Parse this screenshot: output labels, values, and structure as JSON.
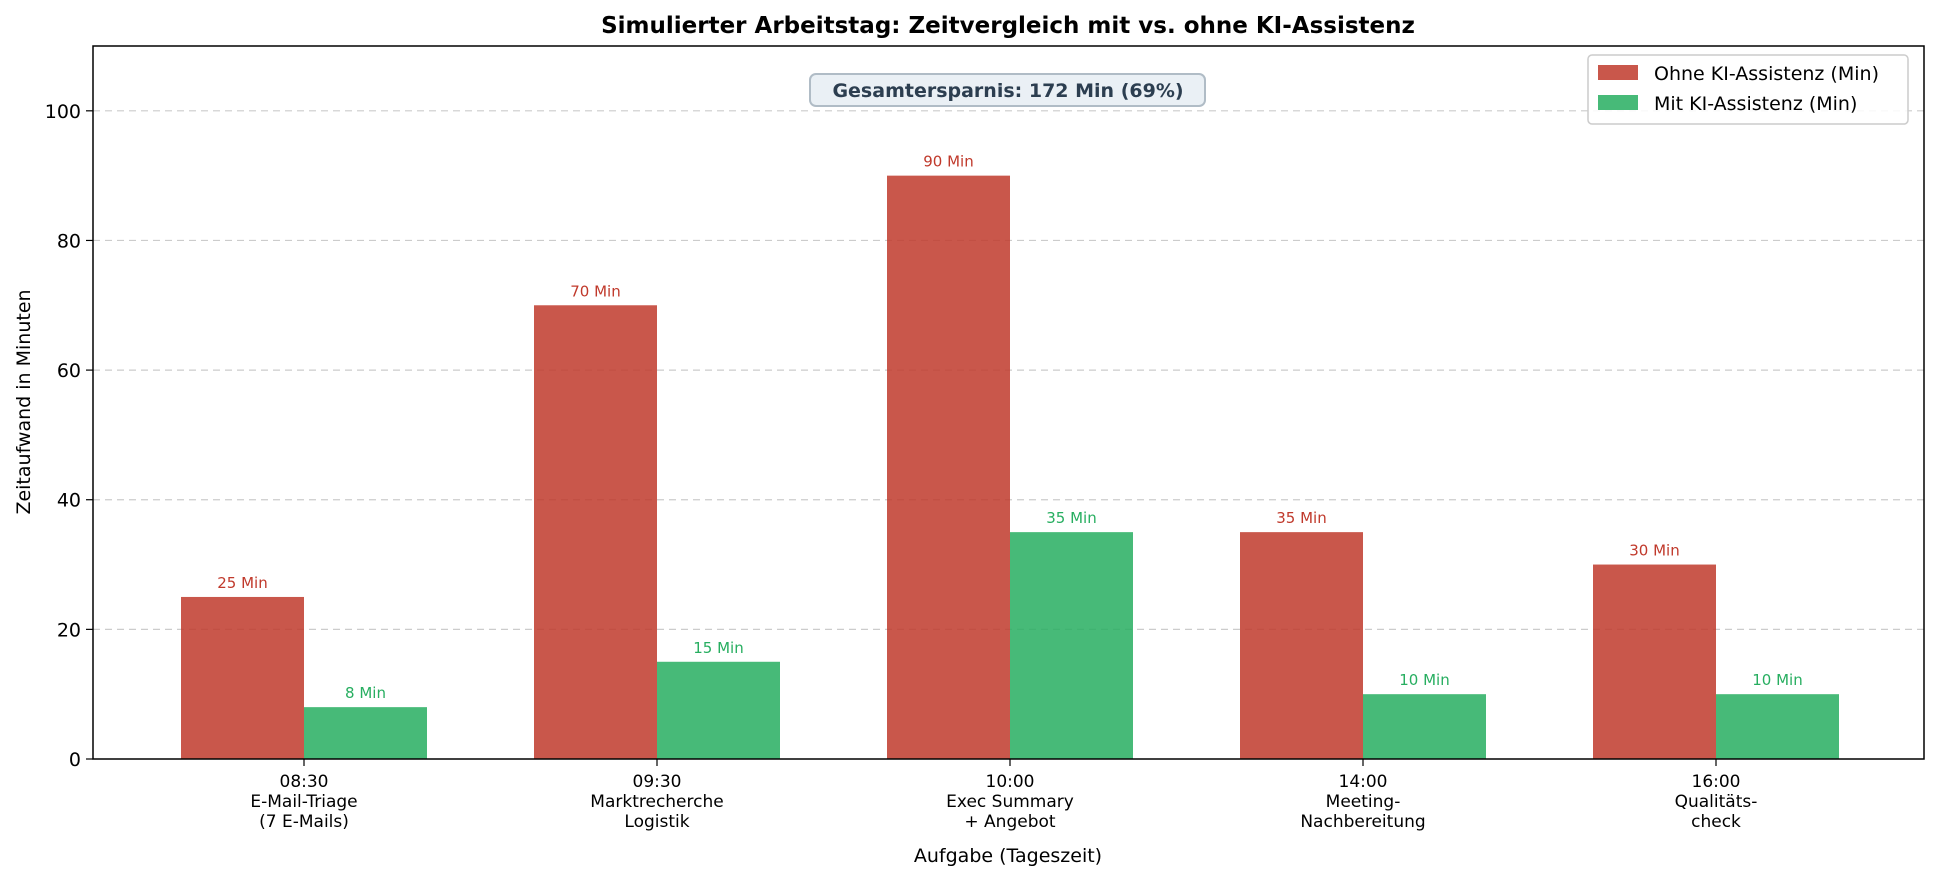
{
  "chart_data": {
    "type": "bar",
    "title": "Simulierter Arbeitstag: Zeitvergleich mit vs. ohne KI-Assistenz",
    "xlabel": "Aufgabe (Tageszeit)",
    "ylabel": "Zeitaufwand in Minuten",
    "categories": [
      [
        "08:30",
        "E-Mail-Triage",
        "(7 E-Mails)"
      ],
      [
        "09:30",
        "Marktrecherche",
        "Logistik"
      ],
      [
        "10:00",
        "Exec Summary",
        "+ Angebot"
      ],
      [
        "14:00",
        "Meeting-",
        "Nachbereitung"
      ],
      [
        "16:00",
        "Qualitäts-",
        "check"
      ]
    ],
    "series": [
      {
        "name": "Ohne KI-Assistenz (Min)",
        "values": [
          25,
          70,
          90,
          35,
          30
        ],
        "labels": [
          "25 Min",
          "70 Min",
          "90 Min",
          "35 Min",
          "30 Min"
        ],
        "color": "#c0392b",
        "label_color": "#c0392b"
      },
      {
        "name": "Mit KI-Assistenz (Min)",
        "values": [
          8,
          15,
          35,
          10,
          10
        ],
        "labels": [
          "8 Min",
          "15 Min",
          "35 Min",
          "10 Min",
          "10 Min"
        ],
        "color": "#27ae60",
        "label_color": "#27ae60"
      }
    ],
    "ylim": [
      0,
      110
    ],
    "yticks": [
      0,
      20,
      40,
      60,
      80,
      100
    ],
    "grid": true,
    "legend_position": "top-right",
    "annotation": "Gesamtersparnis: 172 Min (69%)"
  }
}
